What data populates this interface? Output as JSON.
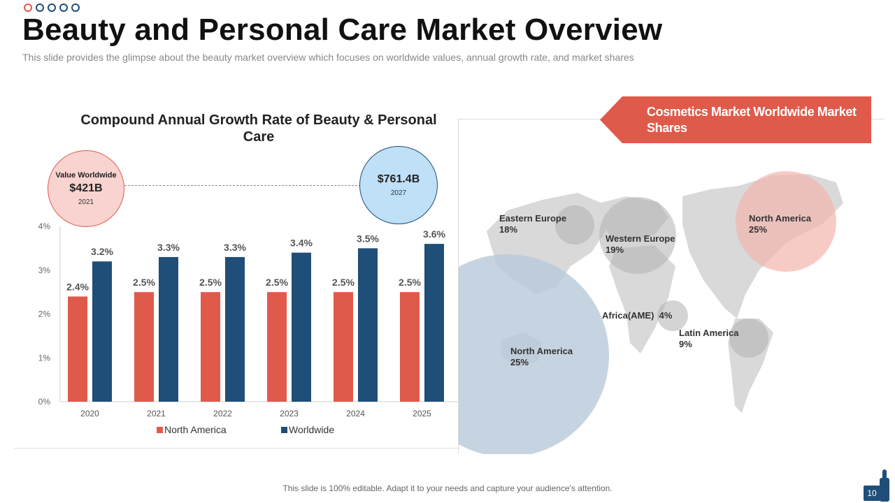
{
  "slide": {
    "title": "Beauty and Personal Care Market Overview",
    "subtitle": "This slide provides the glimpse about the beauty market overview which focuses on worldwide values, annual growth rate, and market shares",
    "footer": "This slide is 100% editable. Adapt it to your needs and capture your audience's attention.",
    "page_number": "10"
  },
  "colors": {
    "north_america": "#e05a4b",
    "worldwide": "#1f4e79",
    "banner": "#e05a4b",
    "map": "#d9d9d9"
  },
  "bubbles": {
    "left": {
      "label": "Value Worldwide",
      "value": "$421B",
      "year": "2021"
    },
    "right": {
      "value": "$761.4B",
      "year": "2027"
    }
  },
  "chart_data": {
    "type": "bar",
    "title": "Compound Annual Growth Rate of Beauty & Personal Care",
    "categories": [
      "2020",
      "2021",
      "2022",
      "2023",
      "2024",
      "2025"
    ],
    "series": [
      {
        "name": "North America",
        "values": [
          2.4,
          2.5,
          2.5,
          2.5,
          2.5,
          2.5
        ],
        "labels": [
          "2.4%",
          "2.5%",
          "2.5%",
          "2.5%",
          "2.5%",
          "2.5%"
        ]
      },
      {
        "name": "Worldwide",
        "values": [
          3.2,
          3.3,
          3.3,
          3.4,
          3.5,
          3.6
        ],
        "labels": [
          "3.2%",
          "3.3%",
          "3.3%",
          "3.4%",
          "3.5%",
          "3.6%"
        ]
      }
    ],
    "y_ticks": [
      "0%",
      "1%",
      "2%",
      "3%",
      "4%"
    ],
    "ylim": [
      0,
      4
    ],
    "legend_position": "bottom"
  },
  "market_shares": {
    "title": "Cosmetics Market Worldwide Market Shares",
    "regions": [
      {
        "name": "Eastern Europe",
        "share": "18%"
      },
      {
        "name": "Western Europe",
        "share": "19%"
      },
      {
        "name": "North America",
        "share": "25%"
      },
      {
        "name": "Africa(AME)",
        "share": "4%"
      },
      {
        "name": "Latin America",
        "share": "9%"
      },
      {
        "name": "North America",
        "share": "25%"
      }
    ]
  }
}
